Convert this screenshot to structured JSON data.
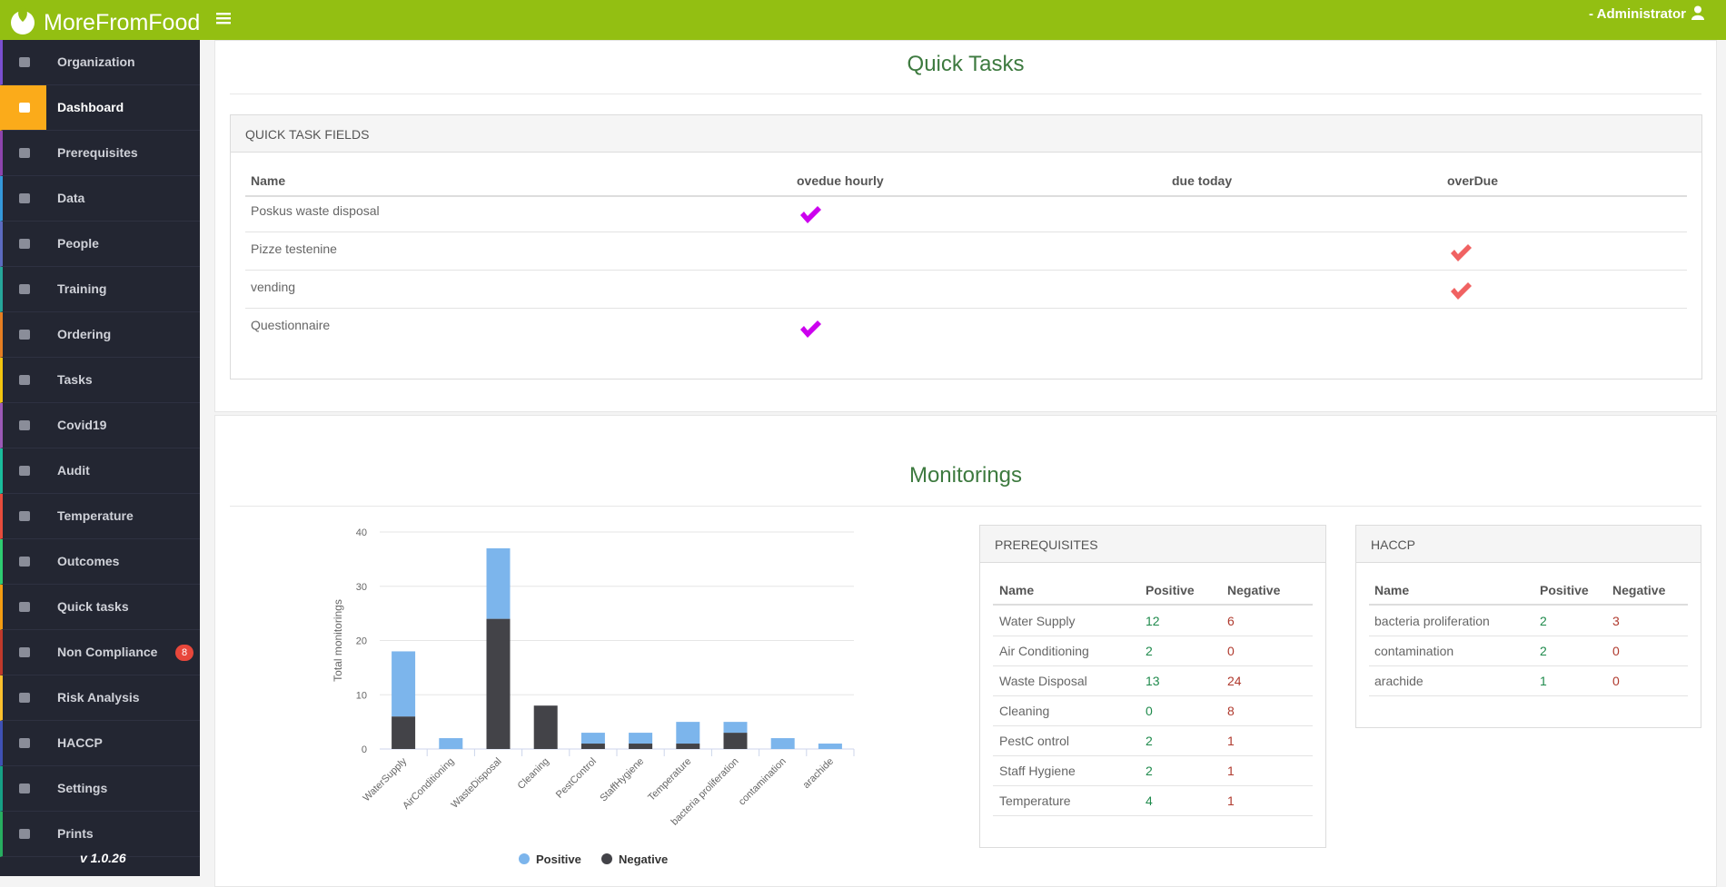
{
  "header": {
    "brand": "MoreFromFood",
    "user_role": "- Administrator"
  },
  "sidebar": {
    "items": [
      {
        "label": "Organization"
      },
      {
        "label": "Dashboard",
        "active": true
      },
      {
        "label": "Prerequisites"
      },
      {
        "label": "Data"
      },
      {
        "label": "People"
      },
      {
        "label": "Training"
      },
      {
        "label": "Ordering"
      },
      {
        "label": "Tasks"
      },
      {
        "label": "Covid19"
      },
      {
        "label": "Audit"
      },
      {
        "label": "Temperature"
      },
      {
        "label": "Outcomes"
      },
      {
        "label": "Quick tasks"
      },
      {
        "label": "Non Compliance",
        "badge": 8
      },
      {
        "label": "Risk Analysis"
      },
      {
        "label": "HACCP"
      },
      {
        "label": "Settings"
      },
      {
        "label": "Prints"
      }
    ],
    "version": "v 1.0.26"
  },
  "quick_tasks": {
    "title": "Quick Tasks",
    "box_title": "QUICK TASK FIELDS",
    "columns": [
      "Name",
      "ovedue hourly",
      "due today",
      "overDue"
    ],
    "rows": [
      {
        "name": "Poskus waste disposal",
        "checks": [
          "#cc00ee",
          null,
          null
        ]
      },
      {
        "name": "Pizze testenine",
        "checks": [
          null,
          null,
          "#f06262"
        ]
      },
      {
        "name": "vending",
        "checks": [
          null,
          null,
          "#f06262"
        ]
      },
      {
        "name": "Questionnaire",
        "checks": [
          "#cc00ee",
          null,
          null
        ]
      }
    ]
  },
  "monitorings": {
    "title": "Monitorings",
    "chart_data": {
      "type": "bar",
      "stacked": true,
      "y_label": "Total monitorings",
      "categories": [
        "WaterSupply",
        "AirConditioning",
        "WasteDisposal",
        "Cleaning",
        "PestControl",
        "StaffHygiene",
        "Temperature",
        "bacteria proliferation",
        "contamination",
        "arachide"
      ],
      "series": [
        {
          "name": "Positive",
          "color": "#7cb5ec",
          "values": [
            12,
            2,
            13,
            0,
            2,
            2,
            4,
            2,
            2,
            1
          ]
        },
        {
          "name": "Negative",
          "color": "#434348",
          "values": [
            6,
            0,
            24,
            8,
            1,
            1,
            1,
            3,
            0,
            0
          ]
        }
      ],
      "ylim": [
        0,
        40
      ],
      "yticks": [
        0,
        10,
        20,
        30,
        40
      ],
      "grid": true,
      "legend": "bottom"
    },
    "prerequisites": {
      "title": "PREREQUISITES",
      "columns": [
        "Name",
        "Positive",
        "Negative"
      ],
      "rows": [
        [
          "Water Supply",
          12,
          6
        ],
        [
          "Air Conditioning",
          2,
          0
        ],
        [
          "Waste Disposal",
          13,
          24
        ],
        [
          "Cleaning",
          0,
          8
        ],
        [
          "PestC ontrol",
          2,
          1
        ],
        [
          "Staff Hygiene",
          2,
          1
        ],
        [
          "Temperature",
          4,
          1
        ]
      ]
    },
    "haccp": {
      "title": "HACCP",
      "columns": [
        "Name",
        "Positive",
        "Negative"
      ],
      "rows": [
        [
          "bacteria proliferation",
          2,
          3
        ],
        [
          "contamination",
          2,
          0
        ],
        [
          "arachide",
          1,
          0
        ]
      ]
    }
  }
}
